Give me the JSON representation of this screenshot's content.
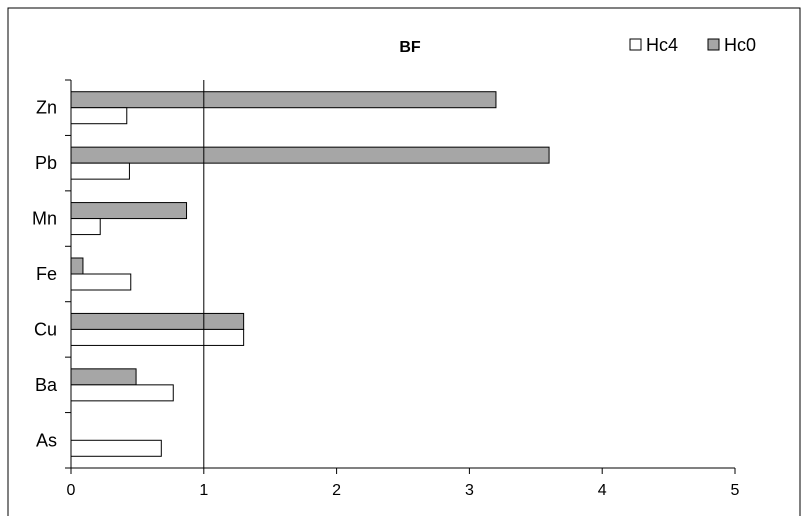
{
  "chart_data": {
    "type": "bar",
    "orientation": "horizontal",
    "title": "BF",
    "xlabel": "",
    "ylabel": "",
    "categories": [
      "Zn",
      "Pb",
      "Mn",
      "Fe",
      "Cu",
      "Ba",
      "As"
    ],
    "series": [
      {
        "name": "Hc0",
        "color": "#a6a6a6",
        "values": [
          3.2,
          3.6,
          0.87,
          0.09,
          1.3,
          0.49,
          0
        ]
      },
      {
        "name": "Hc4",
        "color": "#ffffff",
        "values": [
          0.42,
          0.44,
          0.22,
          0.45,
          1.3,
          0.77,
          0.68
        ]
      }
    ],
    "xlim": [
      0,
      5
    ],
    "xticks": [
      "0",
      "1",
      "2",
      "3",
      "4",
      "5"
    ],
    "reference_line_x": 1,
    "legend": {
      "position": "top-right",
      "entries": [
        "Hc4",
        "Hc0"
      ]
    },
    "grid": false
  }
}
